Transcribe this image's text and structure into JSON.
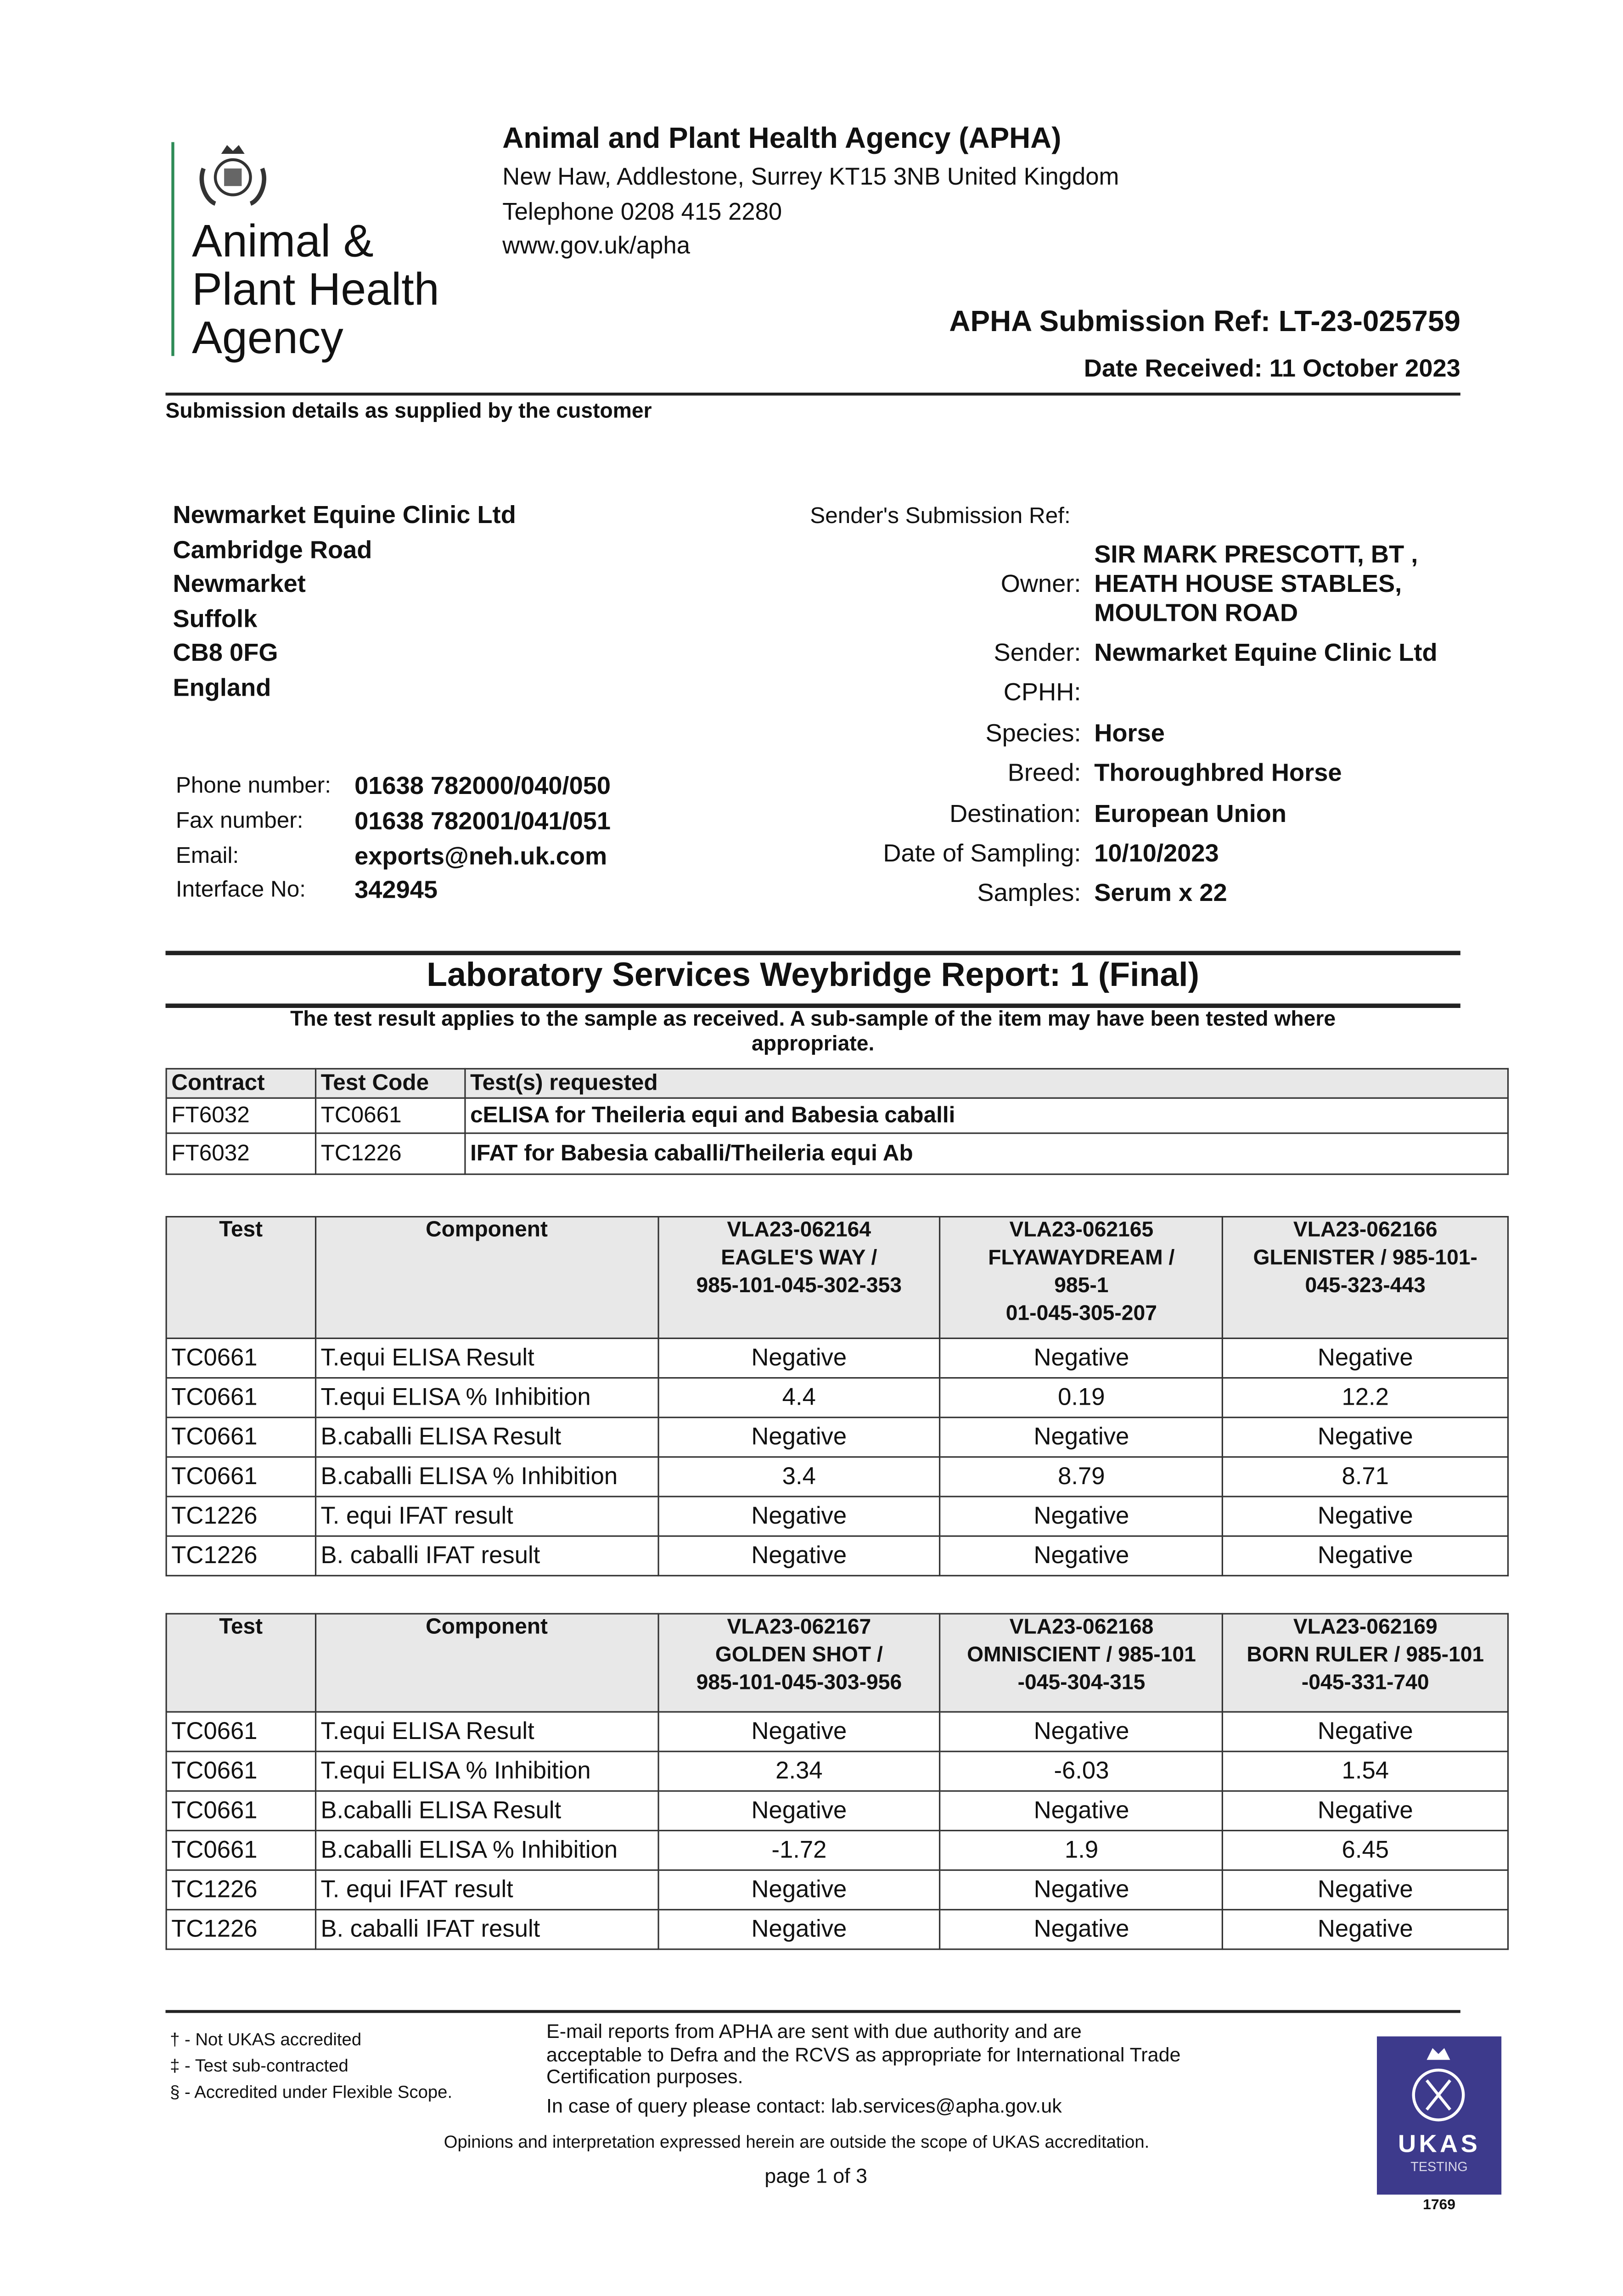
{
  "logo": {
    "line1": "Animal &",
    "line2": "Plant Health",
    "line3": "Agency"
  },
  "header": {
    "org": "Animal and Plant Health Agency (APHA)",
    "address": "New Haw, Addlestone, Surrey KT15 3NB United Kingdom",
    "telephone": "Telephone 0208 415 2280",
    "web": "www.gov.uk/apha",
    "submission_ref": "APHA Submission Ref: LT-23-025759",
    "date_received": "Date Received: 11 October 2023"
  },
  "submission_heading": "Submission details as supplied by the customer",
  "customer": {
    "address": [
      "Newmarket Equine Clinic Ltd",
      "Cambridge Road",
      "Newmarket",
      "Suffolk",
      "CB8 0FG",
      "England"
    ],
    "contacts": [
      {
        "label": "Phone number:",
        "value": "01638 782000/040/050"
      },
      {
        "label": "Fax number:",
        "value": "01638 782001/041/051"
      },
      {
        "label": "Email:",
        "value": "exports@neh.uk.com"
      },
      {
        "label": "Interface No:",
        "value": "342945"
      }
    ]
  },
  "details": {
    "senders_ref_label": "Sender's Submission Ref:",
    "owner_label": "Owner:",
    "owner": [
      "SIR MARK PRESCOTT, BT ,",
      "HEATH HOUSE STABLES,",
      "MOULTON ROAD"
    ],
    "fields": [
      {
        "label": "Sender:",
        "value": "Newmarket Equine Clinic Ltd"
      },
      {
        "label": "CPHH:",
        "value": ""
      },
      {
        "label": "Species:",
        "value": "Horse"
      },
      {
        "label": "Breed:",
        "value": "Thoroughbred Horse"
      },
      {
        "label": "Destination:",
        "value": "European Union"
      },
      {
        "label": "Date of Sampling:",
        "value": "10/10/2023"
      },
      {
        "label": "Samples:",
        "value": "Serum x 22"
      }
    ]
  },
  "report": {
    "title": "Laboratory Services Weybridge Report: 1 (Final)",
    "note1": "The test result applies to the sample as received. A sub-sample of the item may have been tested where",
    "note2": "appropriate."
  },
  "contract_table": {
    "headers": [
      "Contract",
      "Test Code",
      "Test(s) requested"
    ],
    "rows": [
      [
        "FT6032",
        "TC0661",
        "cELISA for Theileria equi and Babesia caballi"
      ],
      [
        "FT6032",
        "TC1226",
        "IFAT for Babesia caballi/Theileria equi Ab"
      ]
    ]
  },
  "results_tables": [
    {
      "headers": [
        "Test",
        "Component"
      ],
      "samples": [
        [
          "VLA23-062164",
          "EAGLE'S WAY /",
          "985-101-045-302-353"
        ],
        [
          "VLA23-062165",
          "FLYAWAYDREAM /",
          "985-1",
          "01-045-305-207"
        ],
        [
          "VLA23-062166",
          "GLENISTER / 985-101-",
          "045-323-443"
        ]
      ],
      "rows": [
        [
          "TC0661",
          "T.equi ELISA Result",
          "Negative",
          "Negative",
          "Negative"
        ],
        [
          "TC0661",
          "T.equi ELISA % Inhibition",
          "4.4",
          "0.19",
          "12.2"
        ],
        [
          "TC0661",
          "B.caballi ELISA Result",
          "Negative",
          "Negative",
          "Negative"
        ],
        [
          "TC0661",
          "B.caballi ELISA % Inhibition",
          "3.4",
          "8.79",
          "8.71"
        ],
        [
          "TC1226",
          "T. equi IFAT result",
          "Negative",
          "Negative",
          "Negative"
        ],
        [
          "TC1226",
          "B. caballi IFAT result",
          "Negative",
          "Negative",
          "Negative"
        ]
      ]
    },
    {
      "headers": [
        "Test",
        "Component"
      ],
      "samples": [
        [
          "VLA23-062167",
          "GOLDEN SHOT /",
          "985-101-045-303-956"
        ],
        [
          "VLA23-062168",
          "OMNISCIENT / 985-101",
          "-045-304-315"
        ],
        [
          "VLA23-062169",
          "BORN RULER / 985-101",
          "-045-331-740"
        ]
      ],
      "rows": [
        [
          "TC0661",
          "T.equi ELISA Result",
          "Negative",
          "Negative",
          "Negative"
        ],
        [
          "TC0661",
          "T.equi ELISA % Inhibition",
          "2.34",
          "-6.03",
          "1.54"
        ],
        [
          "TC0661",
          "B.caballi ELISA Result",
          "Negative",
          "Negative",
          "Negative"
        ],
        [
          "TC0661",
          "B.caballi ELISA % Inhibition",
          "-1.72",
          "1.9",
          "6.45"
        ],
        [
          "TC1226",
          "T. equi IFAT result",
          "Negative",
          "Negative",
          "Negative"
        ],
        [
          "TC1226",
          "B. caballi IFAT result",
          "Negative",
          "Negative",
          "Negative"
        ]
      ]
    }
  ],
  "footer": {
    "legend": [
      "† - Not UKAS accredited",
      "‡ - Test sub-contracted",
      "§ - Accredited under Flexible Scope."
    ],
    "email_note": [
      "E-mail reports from APHA are sent with due authority and are",
      "acceptable to Defra and the RCVS as appropriate for International Trade",
      "Certification purposes."
    ],
    "query": "In case of query please contact: lab.services@apha.gov.uk",
    "opinions": "Opinions and interpretation expressed herein are outside the scope of UKAS accreditation.",
    "page": "page 1 of 3",
    "ukas": {
      "name": "UKAS",
      "sub": "TESTING",
      "number": "1769",
      "color": "#3d3a8c"
    }
  },
  "colors": {
    "logo_bar": "#2e8b57"
  }
}
